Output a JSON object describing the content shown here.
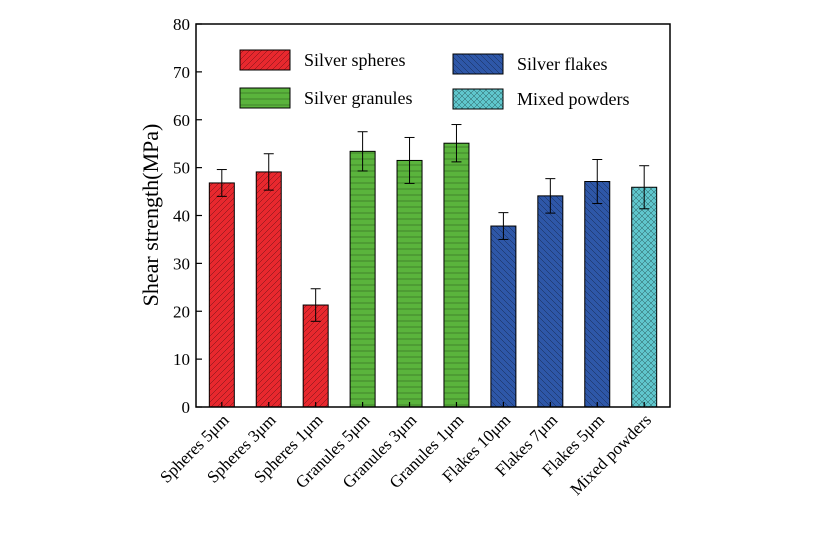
{
  "chart_data": {
    "type": "bar",
    "title": "",
    "xlabel": "",
    "ylabel": "Shear strength(MPa)",
    "ylim": [
      0,
      80
    ],
    "yticks": [
      0,
      10,
      20,
      30,
      40,
      50,
      60,
      70,
      80
    ],
    "grid": false,
    "legend_position": "top",
    "categories": [
      "Spheres 5μm",
      "Spheres 3μm",
      "Spheres 1μm",
      "Granules 5μm",
      "Granules 3μm",
      "Granules 1μm",
      "Flakes 10μm",
      "Flakes 7μm",
      "Flakes 5μm",
      "Mixed powders"
    ],
    "values": [
      46.8,
      49.1,
      21.3,
      53.4,
      51.5,
      55.1,
      37.8,
      44.1,
      47.1,
      45.9
    ],
    "errors": [
      2.8,
      3.8,
      3.4,
      4.1,
      4.8,
      3.9,
      2.8,
      3.6,
      4.6,
      4.5
    ],
    "groups": [
      0,
      0,
      0,
      1,
      1,
      1,
      2,
      2,
      2,
      3
    ],
    "series": [
      {
        "name": "Silver spheres",
        "color": "#e8282e",
        "pattern": "diagonal-right"
      },
      {
        "name": "Silver granules",
        "color": "#5ab43c",
        "pattern": "horizontal"
      },
      {
        "name": "Silver flakes",
        "color": "#2e57a8",
        "pattern": "diagonal-left"
      },
      {
        "name": "Mixed powders",
        "color": "#5fc6cc",
        "pattern": "crosshatch"
      }
    ]
  }
}
